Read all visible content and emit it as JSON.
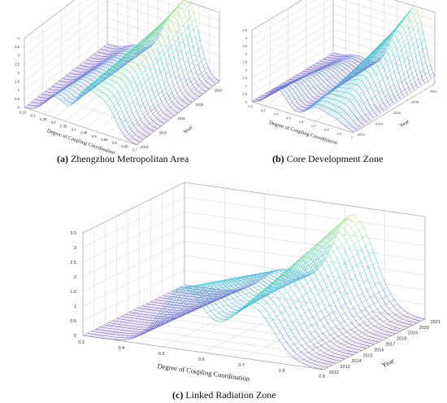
{
  "captions": {
    "a_letter": "(a)",
    "a_text": "Zhengzhou Metropolitan Area",
    "b_letter": "(b)",
    "b_text": "Core Development Zone",
    "c_letter": "(c)",
    "c_text": "Linked Radiation Zone"
  },
  "chart_data": [
    {
      "id": "a",
      "type": "surface",
      "title": "Zhengzhou Metropolitan Area",
      "xlabel": "Degree of Coupling Coordination",
      "ylabel": "Year",
      "zlabel": "",
      "x_ticks": [
        "0.15",
        "0.2",
        "0.25",
        "0.3",
        "0.35",
        "0.4",
        "0.45",
        "0.5",
        "0.55",
        "0.6",
        "0.65",
        "0.7"
      ],
      "y_ticks": [
        "2012",
        "2014",
        "2016",
        "2018",
        "2020"
      ],
      "z_ticks": [
        "0",
        "0.5",
        "1",
        "1.5",
        "2",
        "2.5",
        "3",
        "3.5",
        "4"
      ],
      "zlim": [
        0,
        4
      ],
      "colormap": [
        "#7b5cc4",
        "#58a8e0",
        "#3fd4c8",
        "#d8e070"
      ],
      "years": [
        2012,
        2021
      ],
      "peaks": [
        {
          "x": 0.3,
          "z_start": 1.2,
          "z_end": 0.5
        },
        {
          "x": 0.45,
          "z_start": 2.0,
          "z_end": 2.2
        },
        {
          "x": 0.55,
          "z_start": 1.6,
          "z_end": 3.8
        }
      ]
    },
    {
      "id": "b",
      "type": "surface",
      "title": "Core Development Zone",
      "xlabel": "Degree of Coupling Coordination",
      "ylabel": "Year",
      "zlabel": "",
      "x_ticks": [
        "0.2",
        "0.3",
        "0.4",
        "0.5",
        "0.6",
        "0.7",
        "0.8",
        "0.9",
        "1"
      ],
      "y_ticks": [
        "2012",
        "2014",
        "2016",
        "2018",
        "2020"
      ],
      "z_ticks": [
        "0",
        "0.5",
        "1",
        "1.5",
        "2",
        "2.5",
        "3",
        "3.5",
        "4",
        "4.5"
      ],
      "zlim": [
        0,
        4.5
      ],
      "colormap": [
        "#7b5cc4",
        "#58a8e0",
        "#3fd4c8",
        "#d8e070"
      ],
      "years": [
        2012,
        2021
      ],
      "peaks": [
        {
          "x": 0.4,
          "z_start": 1.3,
          "z_end": 0.3
        },
        {
          "x": 0.7,
          "z_start": 0.8,
          "z_end": 2.3
        },
        {
          "x": 0.85,
          "z_start": 0.5,
          "z_end": 4.1
        }
      ]
    },
    {
      "id": "c",
      "type": "surface",
      "title": "Linked Radiation Zone",
      "xlabel": "Degree of Coupling Coordination",
      "ylabel": "Year",
      "zlabel": "",
      "x_ticks": [
        "0.3",
        "0.4",
        "0.5",
        "0.6",
        "0.7",
        "0.8",
        "0.9"
      ],
      "y_ticks": [
        "2012",
        "2013",
        "2014",
        "2015",
        "2016",
        "2017",
        "2018",
        "2019",
        "2020",
        "2021"
      ],
      "z_ticks": [
        "0",
        "0.5",
        "1",
        "1.5",
        "2",
        "2.5",
        "3",
        "3.5"
      ],
      "zlim": [
        0,
        3.5
      ],
      "colormap": [
        "#7b5cc4",
        "#58a8e0",
        "#3fd4c8",
        "#d8e070"
      ],
      "years": [
        2012,
        2021
      ],
      "peaks": [
        {
          "x": 0.55,
          "z_start": 2.1,
          "z_end": 1.0
        },
        {
          "x": 0.72,
          "z_start": 1.8,
          "z_end": 3.2
        }
      ]
    }
  ]
}
